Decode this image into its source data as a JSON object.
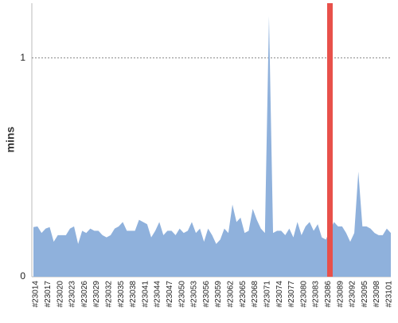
{
  "chart_data": {
    "type": "area",
    "y_label": "mins",
    "categories": [
      "#23014",
      null,
      null,
      "#23017",
      null,
      null,
      "#23020",
      null,
      null,
      "#23023",
      null,
      null,
      "#23026",
      null,
      null,
      "#23029",
      null,
      null,
      "#23032",
      null,
      null,
      "#23035",
      null,
      null,
      "#23038",
      null,
      null,
      "#23041",
      null,
      null,
      "#23044",
      null,
      null,
      "#23047",
      null,
      null,
      "#23050",
      null,
      null,
      "#23053",
      null,
      null,
      "#23056",
      null,
      null,
      "#23059",
      null,
      null,
      "#23062",
      null,
      null,
      "#23065",
      null,
      null,
      "#23068",
      null,
      null,
      "#23071",
      null,
      null,
      "#23074",
      null,
      null,
      "#23077",
      null,
      null,
      "#23080",
      null,
      null,
      "#23083",
      null,
      null,
      "#23086",
      null,
      null,
      "#23089",
      null,
      null,
      "#23092",
      null,
      null,
      "#23095",
      null,
      null,
      "#23098",
      null,
      null,
      "#23101",
      null
    ],
    "values": [
      0.227,
      0.23,
      0.2,
      0.22,
      0.227,
      0.16,
      0.19,
      0.19,
      0.19,
      0.22,
      0.23,
      0.15,
      0.21,
      0.2,
      0.22,
      0.21,
      0.21,
      0.19,
      0.18,
      0.19,
      0.22,
      0.23,
      0.25,
      0.21,
      0.21,
      0.21,
      0.26,
      0.25,
      0.24,
      0.18,
      0.21,
      0.25,
      0.19,
      0.21,
      0.21,
      0.19,
      0.22,
      0.2,
      0.21,
      0.25,
      0.2,
      0.22,
      0.16,
      0.22,
      0.19,
      0.15,
      0.17,
      0.22,
      0.2,
      0.33,
      0.25,
      0.27,
      0.2,
      0.21,
      0.31,
      0.26,
      0.22,
      0.2,
      1.19,
      0.2,
      0.21,
      0.21,
      0.19,
      0.22,
      0.18,
      0.25,
      0.19,
      0.23,
      0.25,
      0.21,
      0.24,
      0.18,
      0.17,
      0.21,
      0.25,
      0.23,
      0.23,
      0.2,
      0.16,
      0.2,
      0.48,
      0.23,
      0.23,
      0.22,
      0.2,
      0.19,
      0.19,
      0.22,
      0.2
    ],
    "color": "#8fb1dc",
    "highlight": {
      "category_index": 73,
      "color": "#e8504a"
    },
    "ylim": [
      0,
      1.25
    ],
    "yticks": [
      0,
      1
    ],
    "grid": true
  }
}
